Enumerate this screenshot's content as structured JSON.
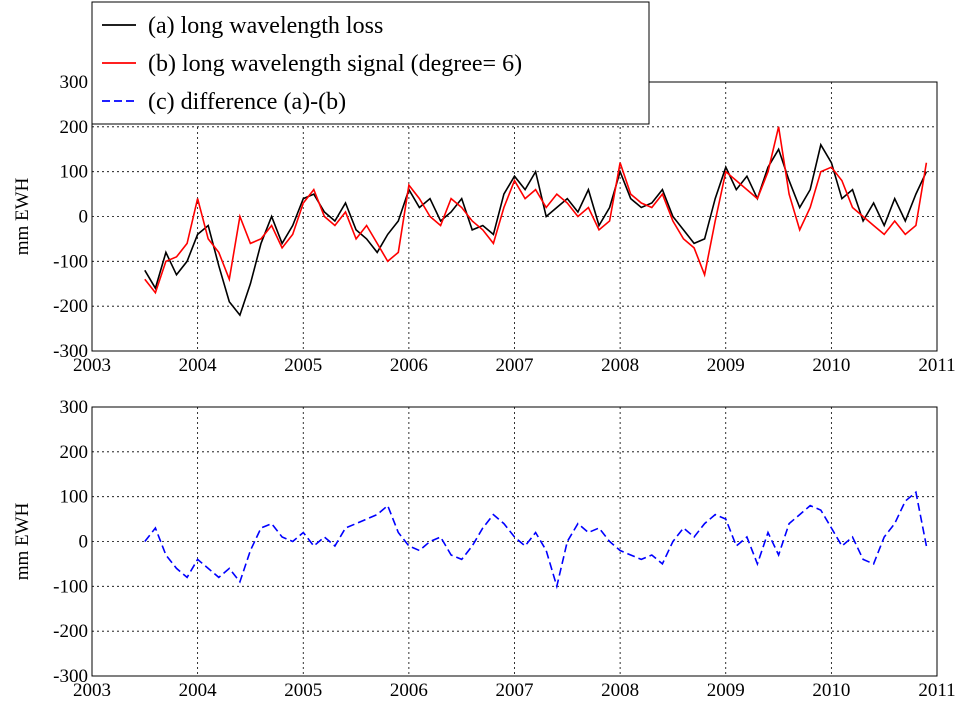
{
  "chart_data": [
    {
      "type": "line",
      "ylabel": "mm EWH",
      "x": [
        2003.5,
        2003.6,
        2003.7,
        2003.8,
        2003.9,
        2004.0,
        2004.1,
        2004.2,
        2004.3,
        2004.4,
        2004.5,
        2004.6,
        2004.7,
        2004.8,
        2004.9,
        2005.0,
        2005.1,
        2005.2,
        2005.3,
        2005.4,
        2005.5,
        2005.6,
        2005.7,
        2005.8,
        2005.9,
        2006.0,
        2006.1,
        2006.2,
        2006.3,
        2006.4,
        2006.5,
        2006.6,
        2006.7,
        2006.8,
        2006.9,
        2007.0,
        2007.1,
        2007.2,
        2007.3,
        2007.4,
        2007.5,
        2007.6,
        2007.7,
        2007.8,
        2007.9,
        2008.0,
        2008.1,
        2008.2,
        2008.3,
        2008.4,
        2008.5,
        2008.6,
        2008.7,
        2008.8,
        2008.9,
        2009.0,
        2009.1,
        2009.2,
        2009.3,
        2009.4,
        2009.5,
        2009.6,
        2009.7,
        2009.8,
        2009.9,
        2010.0,
        2010.1,
        2010.2,
        2010.3,
        2010.4,
        2010.5,
        2010.6,
        2010.7,
        2010.8,
        2010.9
      ],
      "series": [
        {
          "name": "(a) long wavelength loss",
          "color": "#000000",
          "style": "solid",
          "values": [
            -120,
            -160,
            -80,
            -130,
            -100,
            -40,
            -20,
            -110,
            -190,
            -220,
            -150,
            -60,
            0,
            -60,
            -20,
            40,
            50,
            10,
            -10,
            30,
            -30,
            -50,
            -80,
            -40,
            -10,
            60,
            20,
            40,
            -10,
            10,
            40,
            -30,
            -20,
            -40,
            50,
            90,
            60,
            100,
            0,
            20,
            40,
            10,
            60,
            -20,
            20,
            100,
            40,
            20,
            30,
            60,
            0,
            -30,
            -60,
            -50,
            40,
            110,
            60,
            90,
            40,
            110,
            150,
            80,
            20,
            60,
            160,
            120,
            40,
            60,
            -10,
            30,
            -20,
            40,
            -10,
            50,
            100
          ]
        },
        {
          "name": "(b) long wavelength signal (degree= 6)",
          "color": "#ff0000",
          "style": "solid",
          "values": [
            -140,
            -170,
            -100,
            -90,
            -60,
            40,
            -50,
            -80,
            -140,
            0,
            -60,
            -50,
            -20,
            -70,
            -40,
            30,
            60,
            0,
            -20,
            10,
            -50,
            -20,
            -60,
            -100,
            -80,
            70,
            40,
            0,
            -20,
            40,
            20,
            -10,
            -30,
            -60,
            20,
            80,
            40,
            60,
            20,
            50,
            30,
            0,
            20,
            -30,
            -10,
            120,
            50,
            30,
            20,
            50,
            -10,
            -50,
            -70,
            -130,
            -10,
            100,
            80,
            60,
            40,
            100,
            200,
            50,
            -30,
            20,
            100,
            110,
            80,
            20,
            0,
            -20,
            -40,
            -10,
            -40,
            -20,
            120
          ]
        }
      ],
      "xlim": [
        2003,
        2011
      ],
      "xticks": [
        2003,
        2004,
        2005,
        2006,
        2007,
        2008,
        2009,
        2010,
        2011
      ],
      "ylim": [
        -300,
        300
      ],
      "yticks": [
        -300,
        -200,
        -100,
        0,
        100,
        200,
        300
      ],
      "grid": true,
      "legend": "upper left"
    },
    {
      "type": "line",
      "ylabel": "mm EWH",
      "x": [
        2003.5,
        2003.6,
        2003.7,
        2003.8,
        2003.9,
        2004.0,
        2004.1,
        2004.2,
        2004.3,
        2004.4,
        2004.5,
        2004.6,
        2004.7,
        2004.8,
        2004.9,
        2005.0,
        2005.1,
        2005.2,
        2005.3,
        2005.4,
        2005.5,
        2005.6,
        2005.7,
        2005.8,
        2005.9,
        2006.0,
        2006.1,
        2006.2,
        2006.3,
        2006.4,
        2006.5,
        2006.6,
        2006.7,
        2006.8,
        2006.9,
        2007.0,
        2007.1,
        2007.2,
        2007.3,
        2007.4,
        2007.5,
        2007.6,
        2007.7,
        2007.8,
        2007.9,
        2008.0,
        2008.1,
        2008.2,
        2008.3,
        2008.4,
        2008.5,
        2008.6,
        2008.7,
        2008.8,
        2008.9,
        2009.0,
        2009.1,
        2009.2,
        2009.3,
        2009.4,
        2009.5,
        2009.6,
        2009.7,
        2009.8,
        2009.9,
        2010.0,
        2010.1,
        2010.2,
        2010.3,
        2010.4,
        2010.5,
        2010.6,
        2010.7,
        2010.8,
        2010.9
      ],
      "series": [
        {
          "name": "(c) difference (a)-(b)",
          "color": "#0000ff",
          "style": "dashed",
          "values": [
            0,
            30,
            -30,
            -60,
            -80,
            -40,
            -60,
            -80,
            -60,
            -90,
            -20,
            30,
            40,
            10,
            0,
            20,
            -10,
            10,
            -10,
            30,
            40,
            50,
            60,
            80,
            20,
            -10,
            -20,
            0,
            10,
            -30,
            -40,
            -10,
            30,
            60,
            40,
            10,
            -10,
            20,
            -20,
            -100,
            0,
            40,
            20,
            30,
            0,
            -20,
            -30,
            -40,
            -30,
            -50,
            0,
            30,
            10,
            40,
            60,
            50,
            -10,
            10,
            -50,
            20,
            -30,
            40,
            60,
            80,
            70,
            30,
            -10,
            10,
            -40,
            -50,
            10,
            40,
            90,
            110,
            -10
          ]
        }
      ],
      "xlim": [
        2003,
        2011
      ],
      "xticks": [
        2003,
        2004,
        2005,
        2006,
        2007,
        2008,
        2009,
        2010,
        2011
      ],
      "ylim": [
        -300,
        300
      ],
      "yticks": [
        -300,
        -200,
        -100,
        0,
        100,
        200,
        300
      ],
      "grid": true
    }
  ]
}
